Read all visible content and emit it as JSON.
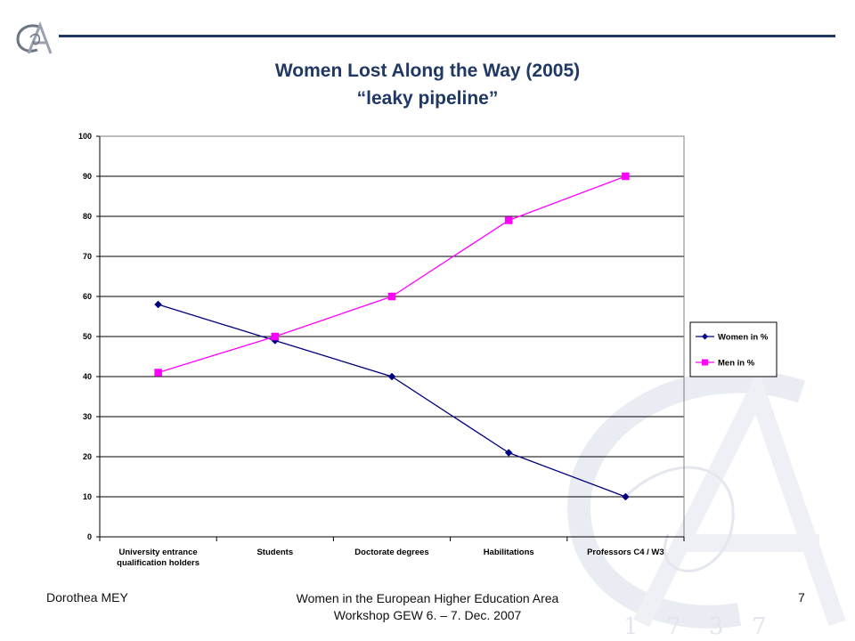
{
  "slide": {
    "title_line1": "Women Lost Along the Way (2005)",
    "title_line2": "“leaky pipeline”",
    "footer_author": "Dorothea MEY",
    "footer_center_line1": "Women in the European Higher Education Area",
    "footer_center_line2": "Workshop GEW  6. – 7. Dec. 2007",
    "page_number": "7",
    "logo_icon": "institution-monogram-logo"
  },
  "chart_data": {
    "type": "line",
    "title": "",
    "xlabel": "",
    "ylabel": "",
    "ylim": [
      0,
      100
    ],
    "yticks": [
      "0",
      "10",
      "20",
      "30",
      "40",
      "50",
      "60",
      "70",
      "80",
      "90",
      "100"
    ],
    "grid": true,
    "legend_position": "right",
    "categories": [
      [
        "University entrance",
        "qualification holders"
      ],
      [
        "Students"
      ],
      [
        "Doctorate degrees"
      ],
      [
        "Habilitations"
      ],
      [
        "Professors C4 / W3"
      ]
    ],
    "series": [
      {
        "name": "Women in %",
        "values": [
          58,
          49,
          40,
          21,
          10
        ],
        "color": "#000080",
        "marker": "diamond"
      },
      {
        "name": "Men in %",
        "values": [
          41,
          50,
          60,
          79,
          90
        ],
        "color": "#ff00ff",
        "marker": "square"
      }
    ]
  }
}
